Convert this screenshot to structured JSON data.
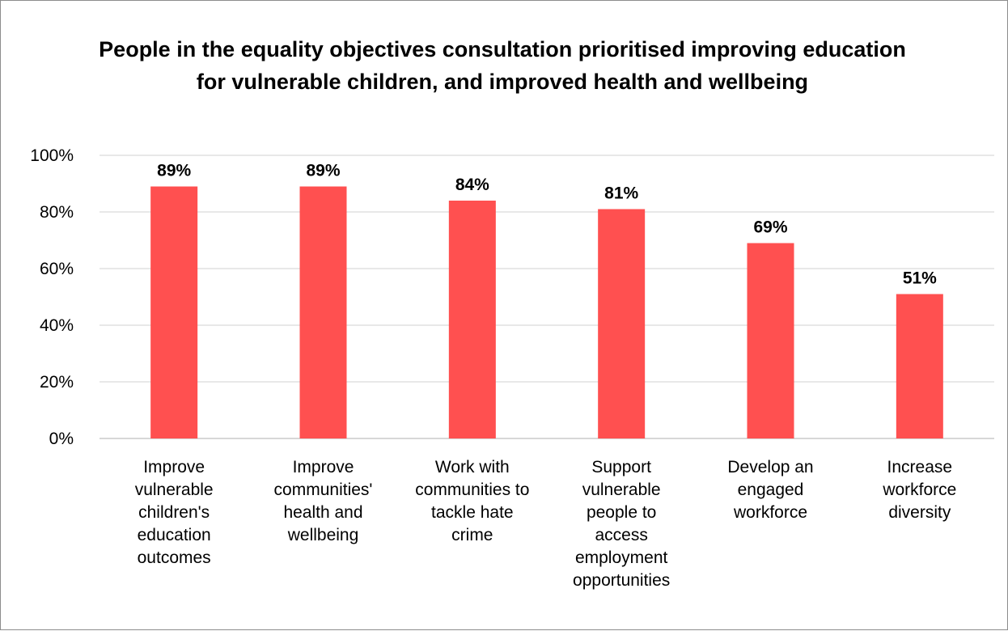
{
  "chart_data": {
    "type": "bar",
    "title": "People in the equality objectives consultation prioritised improving education for vulnerable children, and improved health and wellbeing",
    "categories": [
      "Improve vulnerable children's education outcomes",
      "Improve communities' health and wellbeing",
      "Work with communities to tackle hate crime",
      "Support vulnerable people to access employment opportunities",
      "Develop an engaged workforce",
      "Increase workforce diversity"
    ],
    "category_lines": [
      [
        "Improve",
        "vulnerable",
        "children's",
        "education",
        "outcomes"
      ],
      [
        "Improve",
        "communities'",
        "health and",
        "wellbeing"
      ],
      [
        "Work with",
        "communities to",
        "tackle hate",
        "crime"
      ],
      [
        "Support",
        "vulnerable",
        "people to",
        "access",
        "employment",
        "opportunities"
      ],
      [
        "Develop an",
        "engaged",
        "workforce"
      ],
      [
        "Increase",
        "workforce",
        "diversity"
      ]
    ],
    "values": [
      89,
      89,
      84,
      81,
      69,
      51
    ],
    "data_labels": [
      "89%",
      "89%",
      "84%",
      "81%",
      "69%",
      "51%"
    ],
    "xlabel": "",
    "ylabel": "",
    "ylim": [
      0,
      100
    ],
    "yticks": [
      0,
      20,
      40,
      60,
      80,
      100
    ],
    "ytick_labels": [
      "0%",
      "20%",
      "40%",
      "60%",
      "80%",
      "100%"
    ],
    "grid": true,
    "legend": "none",
    "bar_color": "#ff5050",
    "grid_color": "#d9d9d9"
  }
}
